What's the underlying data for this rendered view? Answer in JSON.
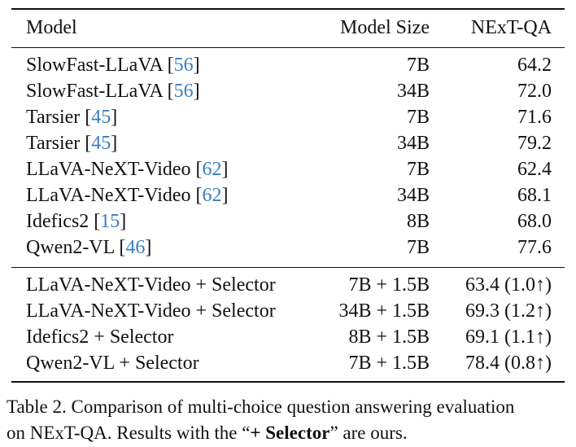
{
  "header": {
    "model": "Model",
    "size": "Model Size",
    "score": "NExT-QA"
  },
  "baselines": [
    {
      "name": "SlowFast-LLaVA",
      "cite": "56",
      "size": "7B",
      "score": "64.2"
    },
    {
      "name": "SlowFast-LLaVA",
      "cite": "56",
      "size": "34B",
      "score": "72.0"
    },
    {
      "name": "Tarsier",
      "cite": "45",
      "size": "7B",
      "score": "71.6"
    },
    {
      "name": "Tarsier",
      "cite": "45",
      "size": "34B",
      "score": "79.2"
    },
    {
      "name": "LLaVA-NeXT-Video",
      "cite": "62",
      "size": "7B",
      "score": "62.4"
    },
    {
      "name": "LLaVA-NeXT-Video",
      "cite": "62",
      "size": "34B",
      "score": "68.1"
    },
    {
      "name": "Idefics2",
      "cite": "15",
      "size": "8B",
      "score": "68.0"
    },
    {
      "name": "Qwen2-VL",
      "cite": "46",
      "size": "7B",
      "score": "77.6"
    }
  ],
  "ours": [
    {
      "name": "LLaVA-NeXT-Video + Selector",
      "size": "7B + 1.5B",
      "score": "63.4 (1.0↑)"
    },
    {
      "name": "LLaVA-NeXT-Video + Selector",
      "size": "34B + 1.5B",
      "score": "69.3 (1.2↑)"
    },
    {
      "name": "Idefics2 + Selector",
      "size": "8B + 1.5B",
      "score": "69.1 (1.1↑)"
    },
    {
      "name": "Qwen2-VL + Selector",
      "size": "7B + 1.5B",
      "score": "78.4 (0.8↑)"
    }
  ],
  "caption": {
    "line1": "Table 2. Comparison of multi-choice question answering evaluation",
    "line2_pre": "on NExT-QA. Results with the “",
    "line2_bold": "+ Selector",
    "line2_post": "” are ours."
  }
}
